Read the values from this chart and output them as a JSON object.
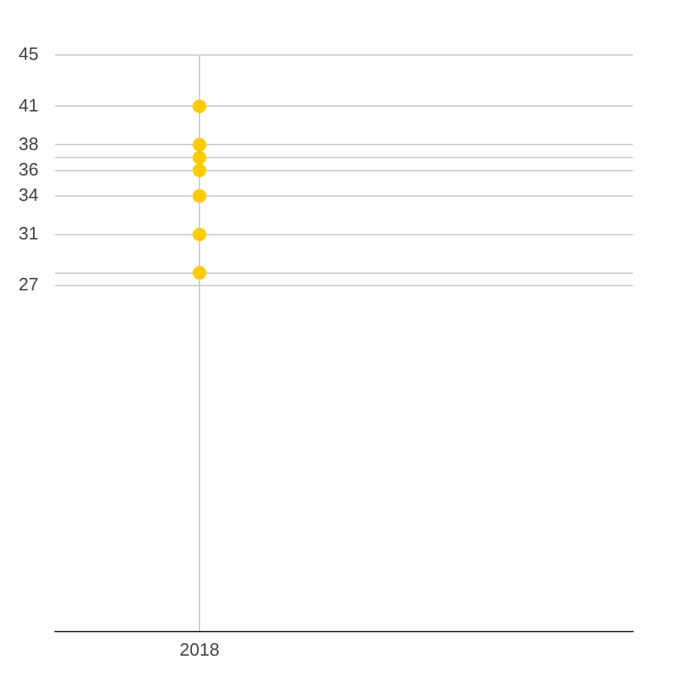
{
  "chart_data": {
    "type": "scatter",
    "categories": [
      "2018"
    ],
    "series": [
      {
        "color": "#ffcc00",
        "values": [
          41
        ]
      },
      {
        "color": "#ffcc00",
        "values": [
          38
        ]
      },
      {
        "color": "#ffcc00",
        "values": [
          37
        ]
      },
      {
        "color": "#ffcc00",
        "values": [
          36
        ]
      },
      {
        "color": "#ffcc00",
        "values": [
          34
        ]
      },
      {
        "color": "#ffcc00",
        "values": [
          31
        ]
      },
      {
        "color": "#ffcc00",
        "values": [
          28
        ]
      }
    ],
    "marker": "circle",
    "ylim": [
      0,
      45
    ],
    "yticks": [
      45,
      41,
      38,
      {
        "value": 37,
        "label": null
      },
      36,
      34,
      31,
      {
        "value": 28,
        "label": null
      },
      27
    ],
    "grid": true
  }
}
